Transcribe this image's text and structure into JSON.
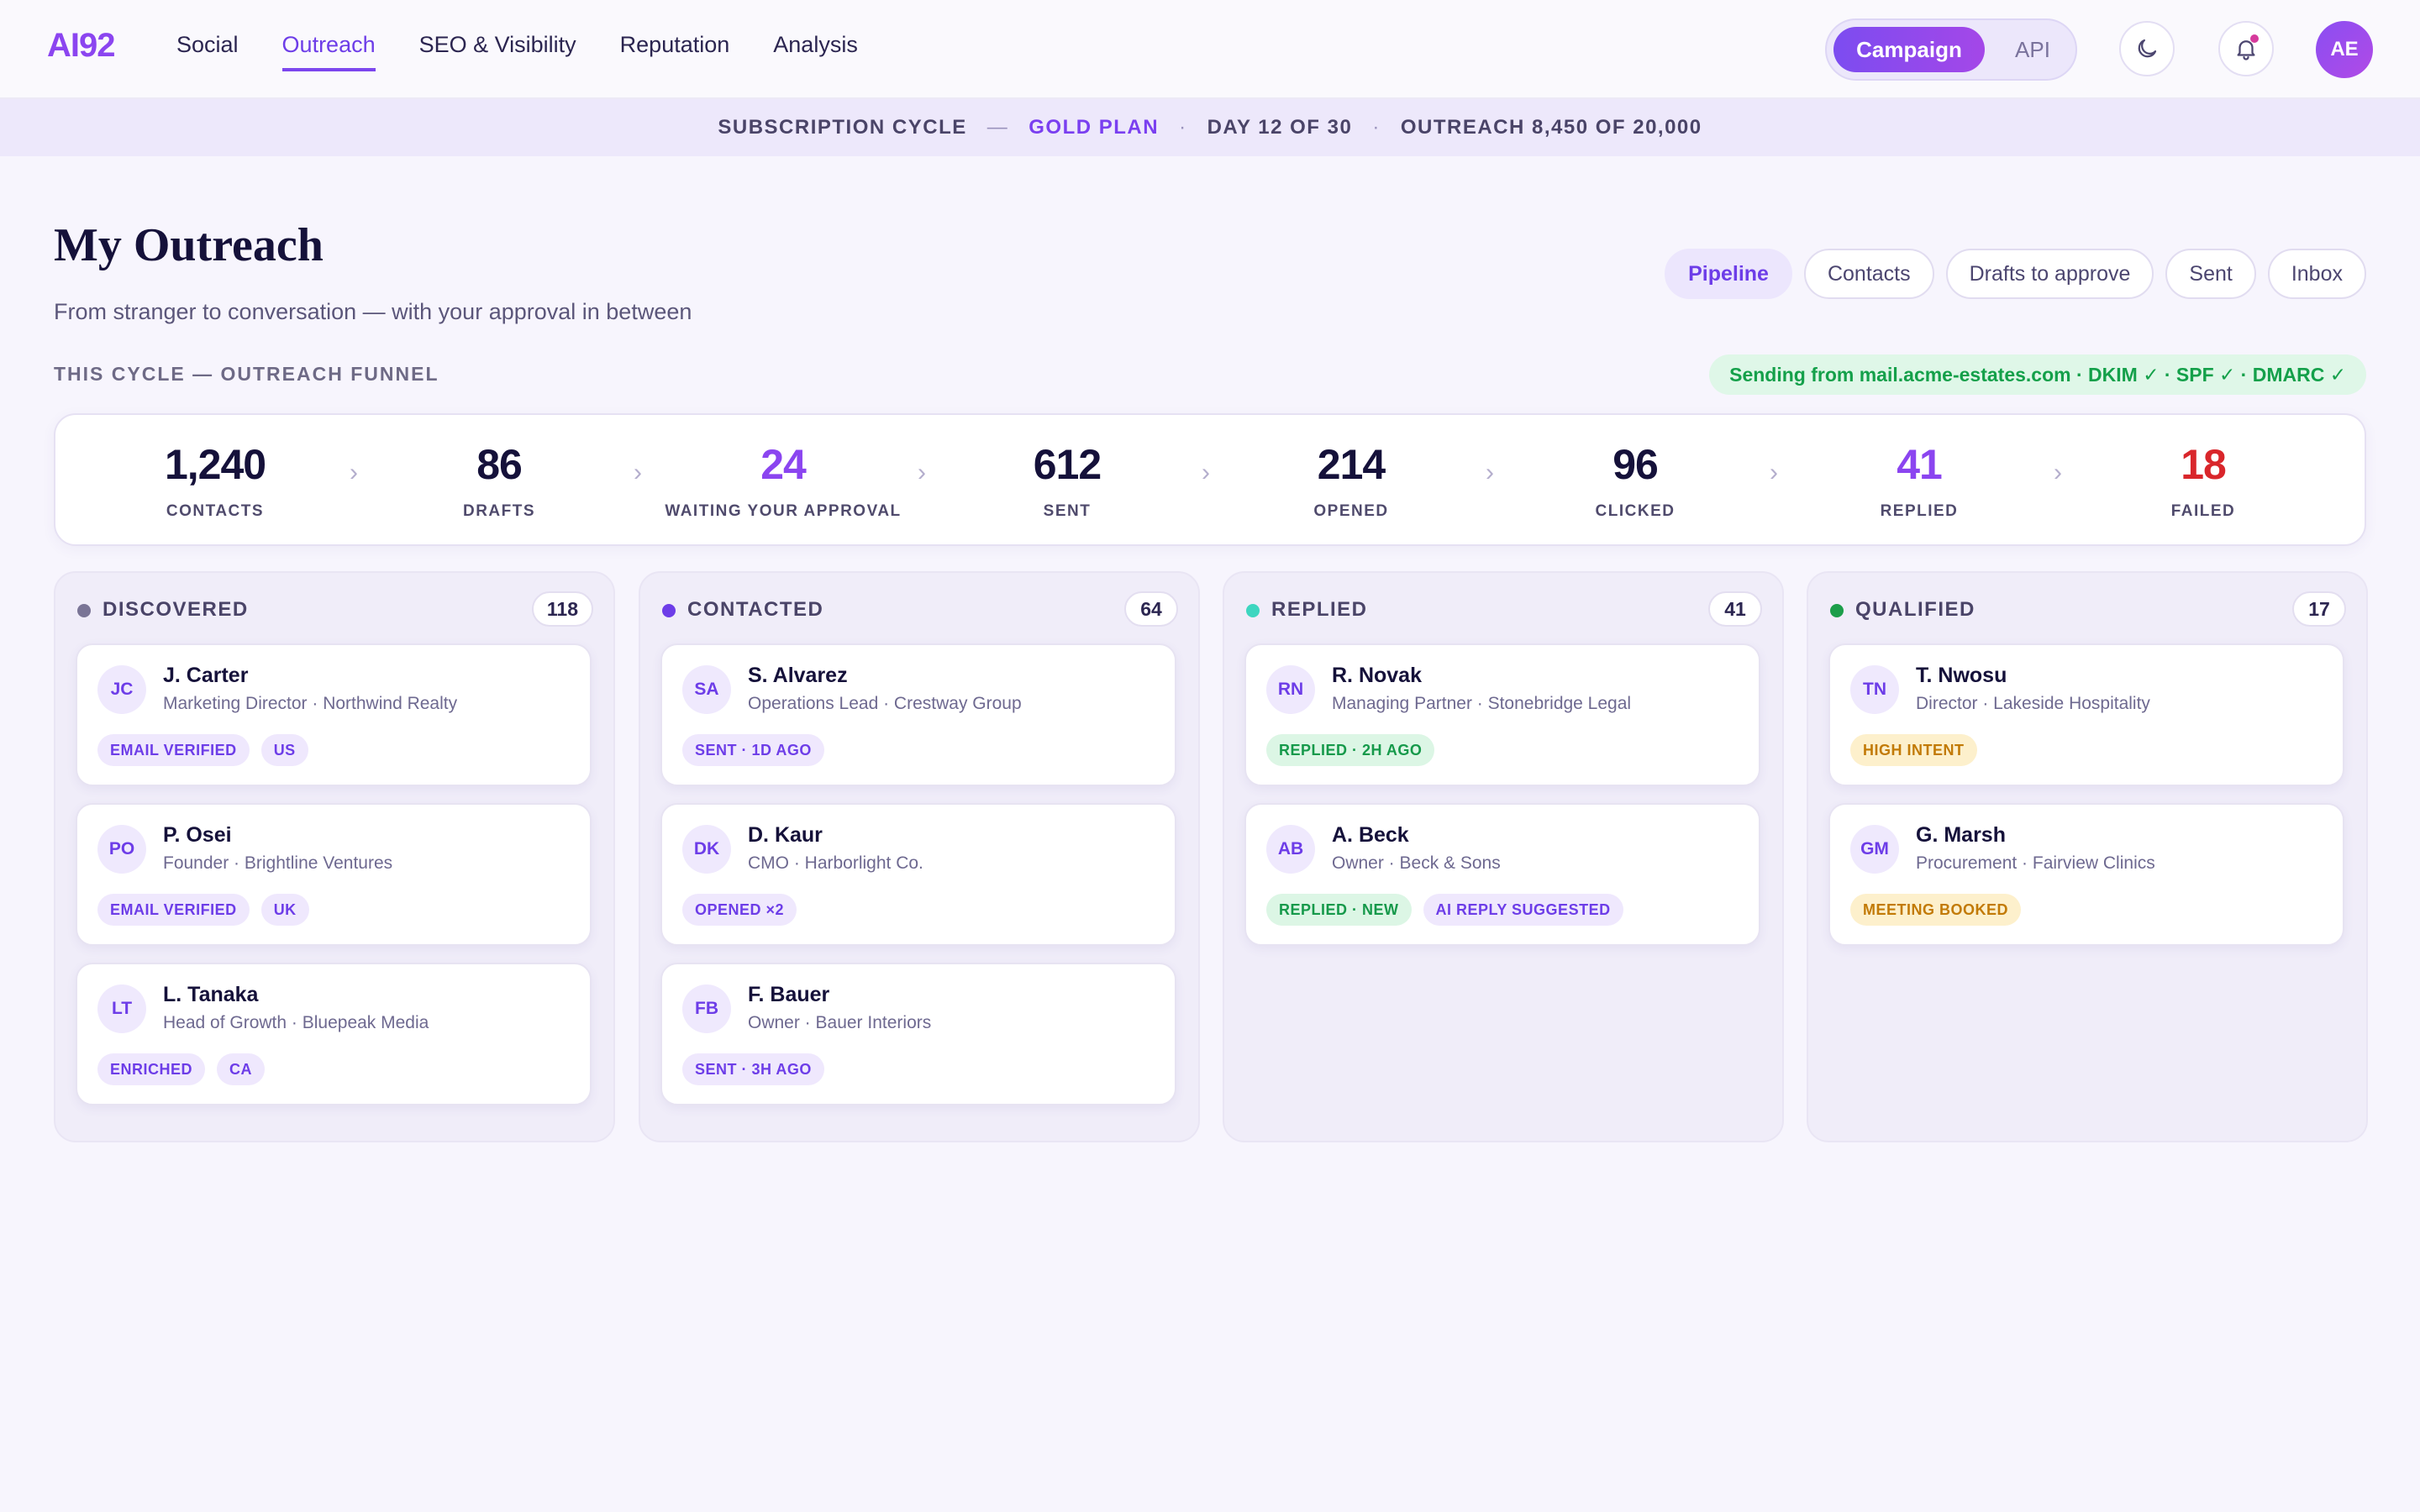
{
  "header": {
    "logo": "AI92",
    "nav": [
      "Social",
      "Outreach",
      "SEO & Visibility",
      "Reputation",
      "Analysis"
    ],
    "active_nav": "Outreach",
    "mode": {
      "campaign": "Campaign",
      "api": "API"
    },
    "avatar": "AE",
    "icons": [
      "moon-icon",
      "bell-icon"
    ]
  },
  "subscription": {
    "label": "SUBSCRIPTION CYCLE",
    "dash": "—",
    "plan": "GOLD PLAN",
    "dot": "·",
    "day": "DAY 12 OF 30",
    "outreach": "OUTREACH 8,450 OF 20,000"
  },
  "page": {
    "title": "My Outreach",
    "subtitle": "From stranger to conversation — with your approval in between",
    "tabs": [
      "Pipeline",
      "Contacts",
      "Drafts to approve",
      "Sent",
      "Inbox"
    ],
    "active_tab": "Pipeline",
    "funnel_label": "THIS CYCLE — OUTREACH FUNNEL",
    "sending": "Sending from mail.acme-estates.com · DKIM ✓ · SPF ✓ · DMARC ✓"
  },
  "funnel": [
    {
      "value": "1,240",
      "label": "CONTACTS",
      "color": "#15113a"
    },
    {
      "value": "86",
      "label": "DRAFTS",
      "color": "#15113a"
    },
    {
      "value": "24",
      "label": "WAITING YOUR APPROVAL",
      "color": "#8b45f0"
    },
    {
      "value": "612",
      "label": "SENT",
      "color": "#15113a"
    },
    {
      "value": "214",
      "label": "OPENED",
      "color": "#15113a"
    },
    {
      "value": "96",
      "label": "CLICKED",
      "color": "#15113a"
    },
    {
      "value": "41",
      "label": "REPLIED",
      "color": "#8b45f0"
    },
    {
      "value": "18",
      "label": "FAILED",
      "color": "#d9262b"
    }
  ],
  "chevron": "›",
  "columns": [
    {
      "title": "DISCOVERED",
      "count": "118",
      "dot_color": "#7a7596",
      "cards": [
        {
          "initials": "JC",
          "name": "J. Carter",
          "role": "Marketing Director · Northwind Realty",
          "tags": [
            {
              "text": "EMAIL VERIFIED",
              "tone": "purple"
            },
            {
              "text": "US",
              "tone": "purple"
            }
          ]
        },
        {
          "initials": "PO",
          "name": "P. Osei",
          "role": "Founder · Brightline Ventures",
          "tags": [
            {
              "text": "EMAIL VERIFIED",
              "tone": "purple"
            },
            {
              "text": "UK",
              "tone": "purple"
            }
          ]
        },
        {
          "initials": "LT",
          "name": "L. Tanaka",
          "role": "Head of Growth · Bluepeak Media",
          "tags": [
            {
              "text": "ENRICHED",
              "tone": "purple"
            },
            {
              "text": "CA",
              "tone": "purple"
            }
          ]
        }
      ]
    },
    {
      "title": "CONTACTED",
      "count": "64",
      "dot_color": "#6d3de8",
      "cards": [
        {
          "initials": "SA",
          "name": "S. Alvarez",
          "role": "Operations Lead · Crestway Group",
          "tags": [
            {
              "text": "SENT · 1D AGO",
              "tone": "purple"
            }
          ]
        },
        {
          "initials": "DK",
          "name": "D. Kaur",
          "role": "CMO · Harborlight Co.",
          "tags": [
            {
              "text": "OPENED ×2",
              "tone": "purple"
            }
          ]
        },
        {
          "initials": "FB",
          "name": "F. Bauer",
          "role": "Owner · Bauer Interiors",
          "tags": [
            {
              "text": "SENT · 3H AGO",
              "tone": "purple"
            }
          ]
        }
      ]
    },
    {
      "title": "REPLIED",
      "count": "41",
      "dot_color": "#3dd6c0",
      "cards": [
        {
          "initials": "RN",
          "name": "R. Novak",
          "role": "Managing Partner · Stonebridge Legal",
          "tags": [
            {
              "text": "REPLIED · 2H AGO",
              "tone": "green"
            }
          ]
        },
        {
          "initials": "AB",
          "name": "A. Beck",
          "role": "Owner · Beck & Sons",
          "tags": [
            {
              "text": "REPLIED · NEW",
              "tone": "green"
            },
            {
              "text": "AI REPLY SUGGESTED",
              "tone": "purple"
            }
          ]
        }
      ]
    },
    {
      "title": "QUALIFIED",
      "count": "17",
      "dot_color": "#1c9e4a",
      "cards": [
        {
          "initials": "TN",
          "name": "T. Nwosu",
          "role": "Director · Lakeside Hospitality",
          "tags": [
            {
              "text": "HIGH INTENT",
              "tone": "amber"
            }
          ]
        },
        {
          "initials": "GM",
          "name": "G. Marsh",
          "role": "Procurement · Fairview Clinics",
          "tags": [
            {
              "text": "MEETING BOOKED",
              "tone": "amber"
            }
          ]
        }
      ]
    }
  ]
}
